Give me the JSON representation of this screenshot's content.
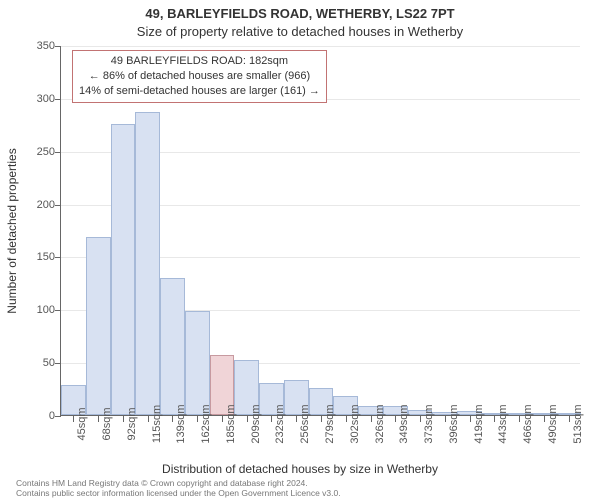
{
  "titles": {
    "line1": "49, BARLEYFIELDS ROAD, WETHERBY, LS22 7PT",
    "line2": "Size of property relative to detached houses in Wetherby"
  },
  "chart": {
    "type": "histogram",
    "xlabel": "Distribution of detached houses by size in Wetherby",
    "ylabel": "Number of detached properties",
    "ylim": [
      0,
      350
    ],
    "yticks": [
      0,
      50,
      100,
      150,
      200,
      250,
      300,
      350
    ],
    "categories": [
      "45sqm",
      "68sqm",
      "92sqm",
      "115sqm",
      "139sqm",
      "162sqm",
      "185sqm",
      "209sqm",
      "232sqm",
      "256sqm",
      "279sqm",
      "302sqm",
      "326sqm",
      "349sqm",
      "373sqm",
      "396sqm",
      "419sqm",
      "443sqm",
      "466sqm",
      "490sqm",
      "513sqm"
    ],
    "values": [
      28,
      168,
      275,
      287,
      130,
      98,
      57,
      52,
      30,
      33,
      26,
      18,
      9,
      9,
      5,
      3,
      4,
      2,
      2,
      1,
      2
    ],
    "highlight_index": 6,
    "marker_value": 182,
    "x_range": [
      45,
      513
    ],
    "bar_fill_normal": "#d8e1f2",
    "bar_fill_highlight": "#f0d4d7",
    "bar_border": "#a6b9d8",
    "bar_border_highlight": "#c79aa0",
    "grid_color": "#e8e8e8",
    "axis_color": "#666666",
    "background_color": "#ffffff",
    "bar_width_ratio": 1.0,
    "annotation": {
      "lines": [
        "49 BARLEYFIELDS ROAD: 182sqm",
        "← 86% of detached houses are smaller (966)",
        "14% of semi-detached houses are larger (161) →"
      ],
      "border_color": "#c27373"
    }
  },
  "footer": {
    "line1": "Contains HM Land Registry data © Crown copyright and database right 2024.",
    "line2": "Contains public sector information licensed under the Open Government Licence v3.0."
  }
}
